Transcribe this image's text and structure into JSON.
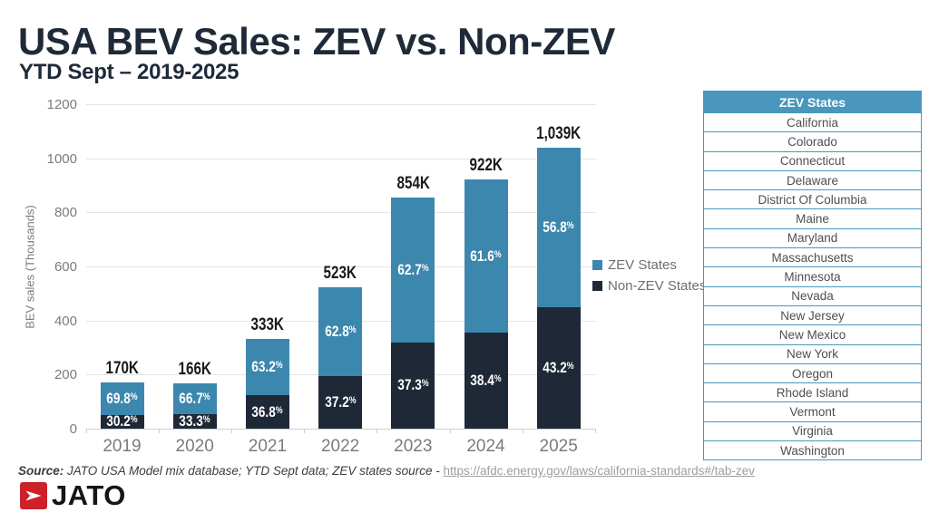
{
  "header": {
    "title": "USA BEV Sales: ZEV vs. Non-ZEV",
    "subtitle": "YTD Sept – 2019-2025"
  },
  "chart_data": {
    "type": "bar",
    "stacked": true,
    "title": "USA BEV Sales: ZEV vs. Non-ZEV",
    "subtitle": "YTD Sept – 2019-2025",
    "xlabel": "",
    "ylabel": "BEV sales (Thousands)",
    "ylim": [
      0,
      1200
    ],
    "yticks": [
      0,
      200,
      400,
      600,
      800,
      1000,
      1200
    ],
    "grid": true,
    "legend_position": "right",
    "categories": [
      "2019",
      "2020",
      "2021",
      "2022",
      "2023",
      "2024",
      "2025"
    ],
    "totals_thousands": [
      170,
      166,
      333,
      523,
      854,
      922,
      1039
    ],
    "total_labels": [
      "170K",
      "166K",
      "333K",
      "523K",
      "854K",
      "922K",
      "1,039K"
    ],
    "series": [
      {
        "name": "ZEV States",
        "color": "#3c87ae",
        "pct": [
          69.8,
          66.7,
          63.2,
          62.8,
          62.7,
          61.6,
          56.8
        ],
        "pct_labels": [
          "69.8",
          "66.7",
          "63.2",
          "62.8",
          "62.7",
          "61.6",
          "56.8"
        ]
      },
      {
        "name": "Non-ZEV States",
        "color": "#1f2837",
        "pct": [
          30.2,
          33.3,
          36.8,
          37.2,
          37.3,
          38.4,
          43.2
        ],
        "pct_labels": [
          "30.2",
          "33.3",
          "36.8",
          "37.2",
          "37.3",
          "38.4",
          "43.2"
        ]
      }
    ]
  },
  "legend": {
    "items": [
      {
        "label": "ZEV States",
        "color": "#3c87ae"
      },
      {
        "label": "Non-ZEV States",
        "color": "#1f2837"
      }
    ]
  },
  "zev_table": {
    "header": "ZEV States",
    "rows": [
      "California",
      "Colorado",
      "Connecticut",
      "Delaware",
      "District Of Columbia",
      "Maine",
      "Maryland",
      "Massachusetts",
      "Minnesota",
      "Nevada",
      "New Jersey",
      "New Mexico",
      "New York",
      "Oregon",
      "Rhode Island",
      "Vermont",
      "Virginia",
      "Washington"
    ]
  },
  "footer": {
    "source_prefix": "Source:",
    "source_text": " JATO USA Model mix database; YTD Sept data; ZEV states source - ",
    "source_link": "https://afdc.energy.gov/laws/california-standards#/tab-zev",
    "logo_text": "JATO"
  },
  "colors": {
    "title": "#1f2a39",
    "zev_bar": "#3c87ae",
    "nonzev_bar": "#1f2837",
    "table_header_bg": "#4997bc",
    "table_border": "#4997bc",
    "logo_red": "#cc2127"
  }
}
